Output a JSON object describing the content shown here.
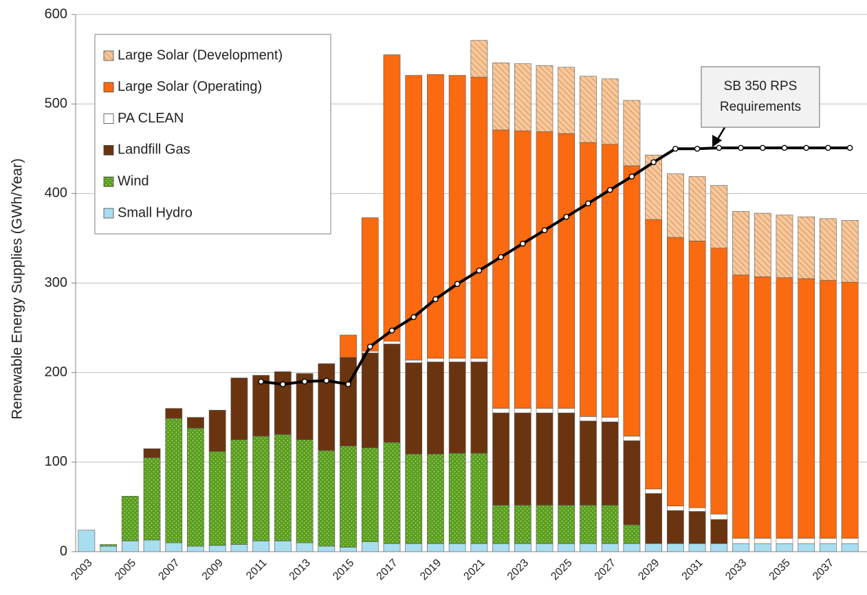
{
  "chart_data": {
    "type": "stacked_bar",
    "y_label": "Renewable Energy Supplies  (GWh/Year)",
    "categories": [
      "2003",
      null,
      "2005",
      null,
      "2007",
      null,
      "2009",
      null,
      "2011",
      null,
      "2013",
      null,
      "2015",
      null,
      "2017",
      null,
      "2019",
      null,
      "2021",
      null,
      "2023",
      null,
      "2025",
      null,
      "2027",
      null,
      "2029",
      null,
      "2031",
      null,
      "2033",
      null,
      "2035",
      null,
      "2037",
      null
    ],
    "series": [
      {
        "name": "Small Hydro",
        "color": "#a8def0",
        "values": [
          24,
          6,
          12,
          13,
          10,
          6,
          7,
          8,
          12,
          12,
          10,
          6,
          5,
          11,
          9,
          9,
          9,
          9,
          9,
          9,
          9,
          9,
          9,
          9,
          9,
          9,
          9,
          9,
          9,
          9,
          9,
          9,
          9,
          9,
          9,
          9
        ]
      },
      {
        "name": "Wind",
        "color": "#5a9e1e",
        "pattern": "dots",
        "values": [
          0,
          2,
          50,
          92,
          139,
          132,
          105,
          117,
          117,
          119,
          115,
          107,
          113,
          105,
          113,
          100,
          100,
          101,
          101,
          43,
          43,
          43,
          43,
          43,
          43,
          21,
          0,
          0,
          0,
          0,
          0,
          0,
          0,
          0,
          0,
          0
        ]
      },
      {
        "name": "Landfill Gas",
        "color": "#6b3410",
        "values": [
          0,
          0,
          0,
          10,
          11,
          12,
          46,
          69,
          68,
          70,
          74,
          97,
          99,
          106,
          110,
          102,
          103,
          102,
          102,
          103,
          103,
          103,
          103,
          94,
          93,
          94,
          56,
          37,
          36,
          27,
          0,
          0,
          0,
          0,
          0,
          0
        ]
      },
      {
        "name": "PA CLEAN",
        "color": "#ffffff",
        "values": [
          0,
          0,
          0,
          0,
          0,
          0,
          0,
          0,
          0,
          0,
          0,
          0,
          0,
          2,
          3,
          3,
          4,
          4,
          4,
          5,
          5,
          5,
          5,
          5,
          5,
          5,
          5,
          5,
          4,
          6,
          6,
          6,
          6,
          6,
          6,
          6
        ]
      },
      {
        "name": "Large Solar (Operating)",
        "color": "#fa6a10",
        "values": [
          0,
          0,
          0,
          0,
          0,
          0,
          0,
          0,
          0,
          0,
          0,
          0,
          25,
          149,
          320,
          318,
          317,
          316,
          314,
          311,
          310,
          309,
          307,
          306,
          305,
          302,
          301,
          300,
          298,
          297,
          294,
          292,
          291,
          290,
          288,
          286
        ]
      },
      {
        "name": "Large Solar (Development)",
        "color": "#f6c89c",
        "pattern": "hatch",
        "values": [
          0,
          0,
          0,
          0,
          0,
          0,
          0,
          0,
          0,
          0,
          0,
          0,
          0,
          0,
          0,
          0,
          0,
          0,
          41,
          75,
          75,
          74,
          74,
          74,
          73,
          73,
          72,
          71,
          72,
          70,
          71,
          71,
          70,
          69,
          69,
          69
        ]
      }
    ],
    "line": {
      "color": "#000000",
      "values": [
        null,
        null,
        null,
        null,
        null,
        null,
        null,
        null,
        190,
        187,
        190,
        191,
        187,
        229,
        247,
        262,
        282,
        299,
        314,
        329,
        344,
        359,
        374,
        389,
        404,
        419,
        435,
        450,
        450,
        451,
        451,
        451,
        451,
        451,
        451,
        451
      ]
    },
    "annotation": [
      "SB 350 RPS",
      "Requirements"
    ],
    "ylim": [
      0,
      600
    ],
    "yticks": [
      0,
      100,
      200,
      300,
      400,
      500,
      600
    ],
    "grid": true,
    "legend": "top-left"
  }
}
